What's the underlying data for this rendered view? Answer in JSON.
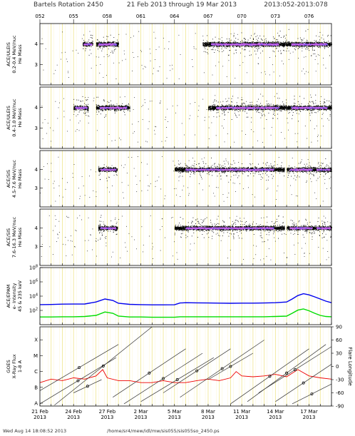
{
  "header": {
    "rotation": "Bartels Rotation 2450",
    "range": "21 Feb 2013 through 19 Mar 2013",
    "doy": "2013:052-2013:078"
  },
  "footer": {
    "timestamp": "Wed Aug 14 18:08:52 2013",
    "path": "/home/sr4/mew/idl/mw/sis055/sis055so_2450.ps"
  },
  "chart_data": {
    "type": "scatter",
    "x_axis": {
      "top_doy_ticks": [
        "052",
        "055",
        "058",
        "061",
        "064",
        "067",
        "070",
        "073",
        "076"
      ],
      "date_ticks": [
        {
          "day": "21 Feb",
          "year": "2013"
        },
        {
          "day": "24 Feb",
          "year": "2013"
        },
        {
          "day": "27 Feb",
          "year": "2013"
        },
        {
          "day": "2 Mar",
          "year": "2013"
        },
        {
          "day": "5 Mar",
          "year": "2013"
        },
        {
          "day": "8 Mar",
          "year": "2013"
        },
        {
          "day": "11 Mar",
          "year": "2013"
        },
        {
          "day": "14 Mar",
          "year": "2013"
        },
        {
          "day": "17 Mar",
          "year": "2013"
        }
      ]
    },
    "panels": [
      {
        "id": "uleis1",
        "ylabel": [
          "ACE/ULEIS",
          "0.2-0.4 MeV/nuc",
          "He Mass"
        ],
        "yticks": [
          "4",
          "3"
        ],
        "ylim": [
          2,
          5
        ],
        "clusters": [
          {
            "doy_start": 55.8,
            "doy_end": 56.7,
            "mass": 4.0
          },
          {
            "doy_start": 57.0,
            "doy_end": 59.0,
            "mass": 4.0
          },
          {
            "doy_start": 66.5,
            "doy_end": 74.0,
            "mass": 4.0
          },
          {
            "doy_start": 74.0,
            "doy_end": 78.0,
            "mass": 4.0
          }
        ]
      },
      {
        "id": "uleis2",
        "ylabel": [
          "ACE/ULEIS",
          "0.4-1.0 MeV/nuc",
          "He Mass"
        ],
        "yticks": [
          "4",
          "3"
        ],
        "ylim": [
          2,
          5
        ],
        "clusters": [
          {
            "doy_start": 55.0,
            "doy_end": 56.3,
            "mass": 4.0
          },
          {
            "doy_start": 57.0,
            "doy_end": 60.0,
            "mass": 4.0
          },
          {
            "doy_start": 67.0,
            "doy_end": 74.0,
            "mass": 4.0
          },
          {
            "doy_start": 74.0,
            "doy_end": 78.0,
            "mass": 4.0
          }
        ]
      },
      {
        "id": "sis1",
        "ylabel": [
          "ACE/SIS",
          "4.5-7.6 MeV/nuc",
          "He Mass"
        ],
        "yticks": [
          "4",
          "3"
        ],
        "ylim": [
          2,
          5
        ],
        "clusters": [
          {
            "doy_start": 57.2,
            "doy_end": 58.9,
            "mass": 4.0
          },
          {
            "doy_start": 64.0,
            "doy_end": 73.8,
            "mass": 4.0
          },
          {
            "doy_start": 74.0,
            "doy_end": 76.5,
            "mass": 4.0
          },
          {
            "doy_start": 76.5,
            "doy_end": 78.0,
            "mass": 4.0
          }
        ]
      },
      {
        "id": "sis2",
        "ylabel": [
          "ACE/SIS",
          "7.6-16.3 MeV/nuc",
          "He Mass"
        ],
        "yticks": [
          "4",
          "3"
        ],
        "ylim": [
          2,
          5
        ],
        "clusters": [
          {
            "doy_start": 57.2,
            "doy_end": 58.9,
            "mass": 4.0
          },
          {
            "doy_start": 64.0,
            "doy_end": 73.8,
            "mass": 4.0
          },
          {
            "doy_start": 74.0,
            "doy_end": 76.5,
            "mass": 4.0
          },
          {
            "doy_start": 76.5,
            "doy_end": 78.0,
            "mass": 4.0
          }
        ]
      },
      {
        "id": "epam",
        "ylabel": [
          "ACE/EPAM",
          "e- Intensity",
          "45 & 235 keV"
        ],
        "yticks": [
          "10^8",
          "10^6",
          "10^4",
          "10^2"
        ],
        "ylim": [
          1,
          100000000
        ],
        "series": [
          {
            "color": "#0000ee",
            "x": [
              52,
              53,
              54,
              55,
              56,
              57,
              57.8,
              58.5,
              59,
              60,
              61,
              62,
              63,
              64,
              64.5,
              65,
              66,
              67,
              68,
              69,
              70,
              71,
              72,
              73,
              74,
              74.5,
              75,
              75.5,
              76,
              76.5,
              77,
              77.5,
              78
            ],
            "y": [
              650,
              680,
              760,
              780,
              800,
              1500,
              4000,
              2500,
              1000,
              700,
              650,
              600,
              600,
              620,
              1100,
              1200,
              1150,
              1100,
              1050,
              1000,
              1050,
              1050,
              1100,
              1200,
              1500,
              4000,
              12000,
              22000,
              15000,
              8000,
              4000,
              2000,
              1200
            ]
          },
          {
            "color": "#00dd00",
            "x": [
              52,
              53,
              54,
              55,
              56,
              57,
              57.8,
              58.5,
              59,
              60,
              61,
              62,
              63,
              64,
              64.5,
              65,
              66,
              67,
              68,
              69,
              70,
              71,
              72,
              73,
              74,
              74.5,
              75,
              75.5,
              76,
              76.5,
              77,
              77.5,
              78
            ],
            "y": [
              12,
              12,
              13,
              13,
              14,
              20,
              60,
              40,
              16,
              12,
              12,
              11,
              11,
              11,
              13,
              13,
              13,
              13,
              13,
              13,
              13,
              13,
              13,
              14,
              16,
              40,
              110,
              160,
              90,
              40,
              20,
              14,
              13
            ]
          }
        ]
      },
      {
        "id": "goes",
        "ylabel": [
          "GOES",
          "X-Ray Flux",
          "1-8 A"
        ],
        "yticks": [
          "X",
          "M",
          "C",
          "B",
          "A"
        ],
        "right_label": "Flare Longitude",
        "right_ticks": [
          "90",
          "60",
          "30",
          "0",
          "-30",
          "-60",
          "-90"
        ],
        "ylim": [
          1e-08,
          0.001
        ],
        "series": [
          {
            "color": "#ee0000",
            "x": [
              52,
              53,
              54,
              55,
              56,
              57,
              57.6,
              58,
              59,
              60,
              61,
              62,
              63,
              64,
              65,
              66,
              67,
              68,
              69,
              69.5,
              70,
              71,
              72,
              73,
              74,
              75,
              76,
              77,
              78
            ],
            "y": [
              3e-07,
              5e-07,
              4e-07,
              6e-07,
              5e-07,
              8e-07,
              2e-06,
              6e-07,
              4e-07,
              4e-07,
              3e-07,
              3e-07,
              4e-07,
              3e-07,
              3e-07,
              4e-07,
              5e-07,
              4e-07,
              6e-07,
              1.5e-06,
              8e-07,
              7e-07,
              8e-07,
              1e-06,
              7e-07,
              2e-06,
              8e-07,
              6e-07,
              5e-07
            ]
          }
        ],
        "flare_tracks": [
          {
            "doy_start": 52.0,
            "lon_start": -55,
            "doy_end": 59.0,
            "lon_end": 50
          },
          {
            "doy_start": 52.0,
            "lon_start": -85,
            "doy_end": 58.8,
            "lon_end": 20
          },
          {
            "doy_start": 53.3,
            "lon_start": -88,
            "doy_end": 62.0,
            "lon_end": 90
          },
          {
            "doy_start": 55.0,
            "lon_start": -60,
            "doy_end": 57.5,
            "lon_end": -30
          },
          {
            "doy_start": 58.5,
            "lon_start": -70,
            "doy_end": 65.0,
            "lon_end": 40
          },
          {
            "doy_start": 59.5,
            "lon_start": -85,
            "doy_end": 66.5,
            "lon_end": 30
          },
          {
            "doy_start": 61.0,
            "lon_start": -80,
            "doy_end": 67.5,
            "lon_end": 20
          },
          {
            "doy_start": 63.0,
            "lon_start": -60,
            "doy_end": 69.0,
            "lon_end": 40
          },
          {
            "doy_start": 64.5,
            "lon_start": -70,
            "doy_end": 72.0,
            "lon_end": 60
          },
          {
            "doy_start": 67.0,
            "lon_start": -30,
            "doy_end": 71.0,
            "lon_end": 30
          },
          {
            "doy_start": 69.0,
            "lon_start": -85,
            "doy_end": 76.0,
            "lon_end": 40
          },
          {
            "doy_start": 70.5,
            "lon_start": -80,
            "doy_end": 77.5,
            "lon_end": 50
          },
          {
            "doy_start": 71.5,
            "lon_start": -60,
            "doy_end": 78.0,
            "lon_end": 45
          },
          {
            "doy_start": 73.0,
            "lon_start": -80,
            "doy_end": 78.0,
            "lon_end": 5
          },
          {
            "doy_start": 74.5,
            "lon_start": -85,
            "doy_end": 78.0,
            "lon_end": -40
          }
        ]
      }
    ]
  }
}
